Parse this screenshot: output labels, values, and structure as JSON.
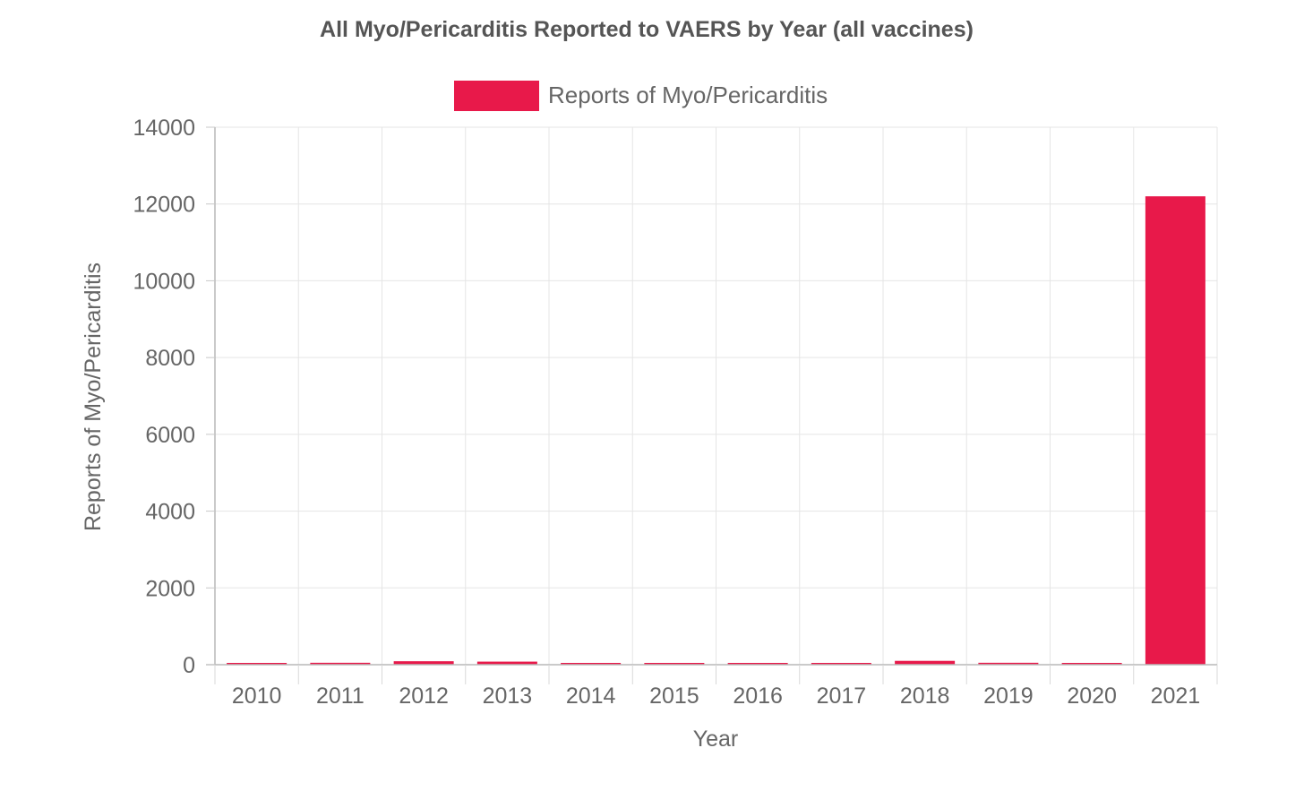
{
  "chart_data": {
    "type": "bar",
    "title": "All Myo/Pericarditis Reported to VAERS by Year (all vaccines)",
    "xlabel": "Year",
    "ylabel": "Reports of Myo/Pericarditis",
    "categories": [
      "2010",
      "2011",
      "2012",
      "2013",
      "2014",
      "2015",
      "2016",
      "2017",
      "2018",
      "2019",
      "2020",
      "2021"
    ],
    "series": [
      {
        "name": "Reports of Myo/Pericarditis",
        "values": [
          40,
          50,
          90,
          80,
          45,
          20,
          35,
          45,
          100,
          50,
          45,
          12200
        ],
        "color": "#e8194a"
      }
    ],
    "ylim": [
      0,
      14000
    ],
    "yticks": [
      "0",
      "2000",
      "4000",
      "6000",
      "8000",
      "10000",
      "12000",
      "14000"
    ],
    "grid": true,
    "legend": "top-center"
  }
}
